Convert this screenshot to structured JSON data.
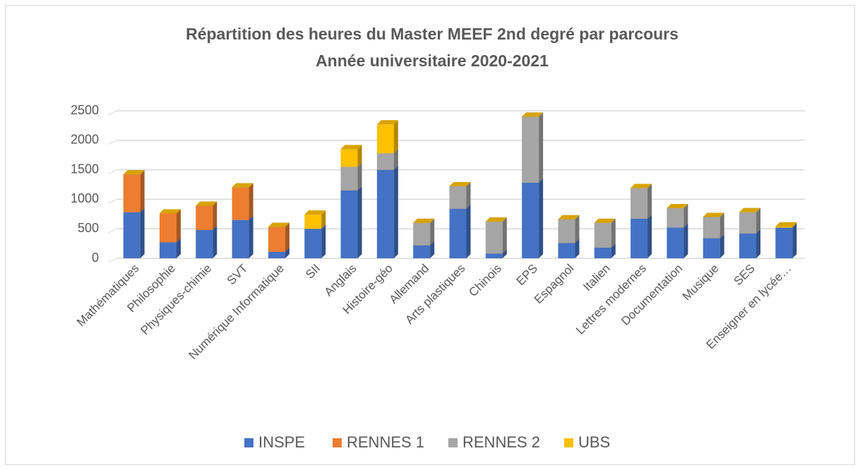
{
  "chart_data": {
    "type": "bar3d_stacked",
    "title": "Répartition des heures du Master MEEF 2nd degré par parcours",
    "subtitle": "Année universitaire 2020-2021",
    "categories": [
      "Mathématiques",
      "Philosophie",
      "Physiques-chimie",
      "SVT",
      "Numérique Informatique",
      "SII",
      "Anglais",
      "Histoire-géo",
      "Allemand",
      "Arts plastiques",
      "Chinois",
      "EPS",
      "Espagnol",
      "Italien",
      "Lettres modernes",
      "Documentation",
      "Musique",
      "SES",
      "Enseigner en lycée…"
    ],
    "series": [
      {
        "name": "INSPE",
        "color": "#4472c4",
        "values": [
          780,
          270,
          480,
          650,
          110,
          500,
          1150,
          1500,
          220,
          840,
          80,
          1280,
          260,
          180,
          670,
          520,
          340,
          420,
          520
        ]
      },
      {
        "name": "RENNES 1",
        "color": "#ed7d31",
        "values": [
          640,
          490,
          410,
          550,
          420,
          0,
          0,
          0,
          0,
          0,
          0,
          0,
          0,
          0,
          0,
          0,
          0,
          0,
          0
        ]
      },
      {
        "name": "RENNES 2",
        "color": "#a5a5a5",
        "values": [
          0,
          0,
          0,
          0,
          0,
          0,
          400,
          280,
          380,
          380,
          540,
          1120,
          400,
          420,
          520,
          330,
          360,
          360,
          0
        ]
      },
      {
        "name": "UBS",
        "color": "#ffc000",
        "values": [
          0,
          0,
          0,
          0,
          0,
          240,
          300,
          490,
          0,
          0,
          0,
          0,
          0,
          0,
          0,
          0,
          0,
          0,
          20
        ]
      }
    ],
    "ylim": [
      0,
      2500
    ],
    "yticks": [
      0,
      500,
      1000,
      1500,
      2000,
      2500
    ],
    "grid": true,
    "legend": "bottom"
  }
}
